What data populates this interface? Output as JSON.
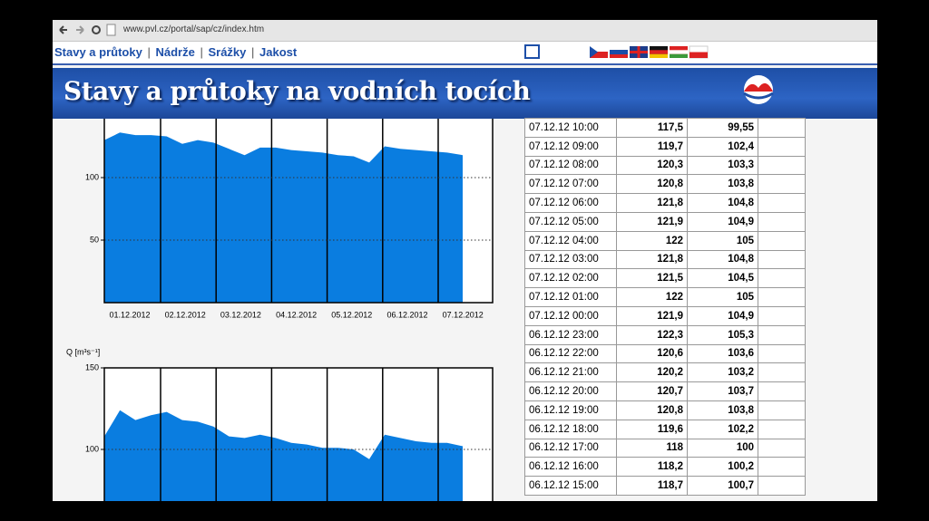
{
  "browser": {
    "url": "www.pvl.cz/portal/sap/cz/index.htm"
  },
  "nav": {
    "links": [
      "Stavy a průtoky",
      "Nádrže",
      "Srážky",
      "Jakost"
    ],
    "separator": "|"
  },
  "header": {
    "title": "Stavy a průtoky na vodních tocích"
  },
  "charts": [
    {
      "type": "area",
      "color": "#0a7de0",
      "ylim": [
        0,
        150
      ],
      "yticks": [
        50,
        100
      ],
      "categories": [
        "01.12.2012",
        "02.12.2012",
        "03.12.2012",
        "04.12.2012",
        "05.12.2012",
        "06.12.2012",
        "07.12.2012"
      ],
      "values": [
        130,
        136,
        134,
        134,
        133,
        127,
        130,
        128,
        123,
        118,
        124,
        124,
        122,
        121,
        120,
        118,
        117,
        112,
        125,
        123,
        122,
        121,
        120,
        118
      ]
    },
    {
      "type": "area",
      "color": "#0a7de0",
      "ylim": [
        0,
        150
      ],
      "yticks": [
        100,
        150
      ],
      "ylabel": "Q [m³s⁻¹]",
      "values": [
        108,
        124,
        118,
        121,
        123,
        118,
        117,
        114,
        108,
        107,
        109,
        107,
        104,
        103,
        101,
        101,
        100,
        94,
        109,
        107,
        105,
        104,
        104,
        102
      ]
    }
  ],
  "table": {
    "rows": [
      [
        "07.12.12 10:00",
        "117,5",
        "99,55"
      ],
      [
        "07.12.12 09:00",
        "119,7",
        "102,4"
      ],
      [
        "07.12.12 08:00",
        "120,3",
        "103,3"
      ],
      [
        "07.12.12 07:00",
        "120,8",
        "103,8"
      ],
      [
        "07.12.12 06:00",
        "121,8",
        "104,8"
      ],
      [
        "07.12.12 05:00",
        "121,9",
        "104,9"
      ],
      [
        "07.12.12 04:00",
        "122",
        "105"
      ],
      [
        "07.12.12 03:00",
        "121,8",
        "104,8"
      ],
      [
        "07.12.12 02:00",
        "121,5",
        "104,5"
      ],
      [
        "07.12.12 01:00",
        "122",
        "105"
      ],
      [
        "07.12.12 00:00",
        "121,9",
        "104,9"
      ],
      [
        "06.12.12 23:00",
        "122,3",
        "105,3"
      ],
      [
        "06.12.12 22:00",
        "120,6",
        "103,6"
      ],
      [
        "06.12.12 21:00",
        "120,2",
        "103,2"
      ],
      [
        "06.12.12 20:00",
        "120,7",
        "103,7"
      ],
      [
        "06.12.12 19:00",
        "120,8",
        "103,8"
      ],
      [
        "06.12.12 18:00",
        "119,6",
        "102,2"
      ],
      [
        "06.12.12 17:00",
        "118",
        "100"
      ],
      [
        "06.12.12 16:00",
        "118,2",
        "100,2"
      ],
      [
        "06.12.12 15:00",
        "118,7",
        "100,7"
      ]
    ]
  }
}
